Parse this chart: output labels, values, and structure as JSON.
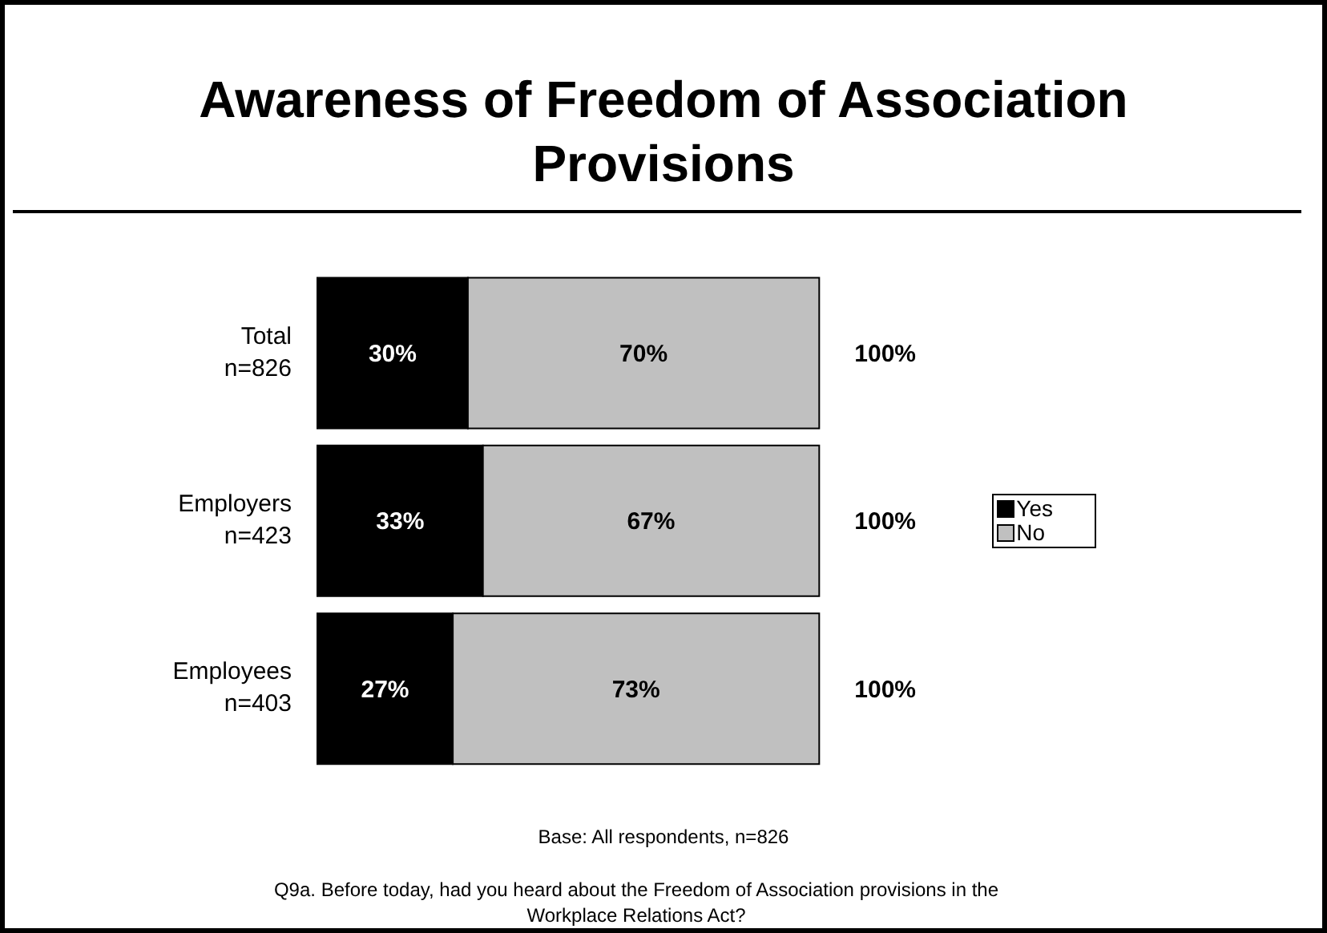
{
  "chart_data": {
    "type": "bar",
    "orientation": "horizontal",
    "stacked": true,
    "title": "Awareness of Freedom of Association Provisions",
    "categories": [
      "Total\nn=826",
      "Employers\nn=423",
      "Employees\nn=403"
    ],
    "series": [
      {
        "name": "Yes",
        "color": "#000000",
        "values": [
          30,
          33,
          27
        ],
        "value_labels": [
          "30%",
          "33%",
          "27%"
        ]
      },
      {
        "name": "No",
        "color": "#c0c0c0",
        "values": [
          70,
          67,
          73
        ],
        "value_labels": [
          "70%",
          "67%",
          "73%"
        ]
      }
    ],
    "totals": [
      "100%",
      "100%",
      "100%"
    ],
    "legend": "right",
    "grid": false,
    "annotations": [
      "Base:  All respondents, n=826",
      "Q9a.  Before today, had you heard about the Freedom of Association provisions in the Workplace Relations Act?"
    ]
  }
}
